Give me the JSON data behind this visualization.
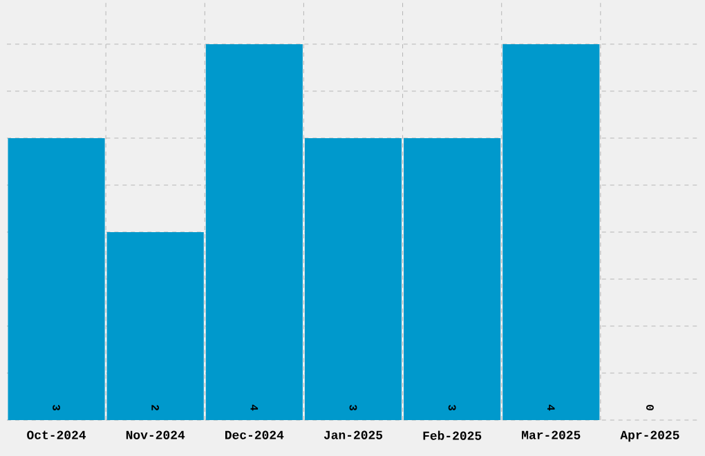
{
  "chart_data": {
    "type": "bar",
    "categories": [
      "Oct-2024",
      "Nov-2024",
      "Dec-2024",
      "Jan-2025",
      "Feb-2025",
      "Mar-2025",
      "Apr-2025"
    ],
    "values": [
      3,
      2,
      4,
      3,
      3,
      4,
      0
    ],
    "color": "#0099cc",
    "tick_labels": "x",
    "grid": true,
    "data_labels": true
  }
}
